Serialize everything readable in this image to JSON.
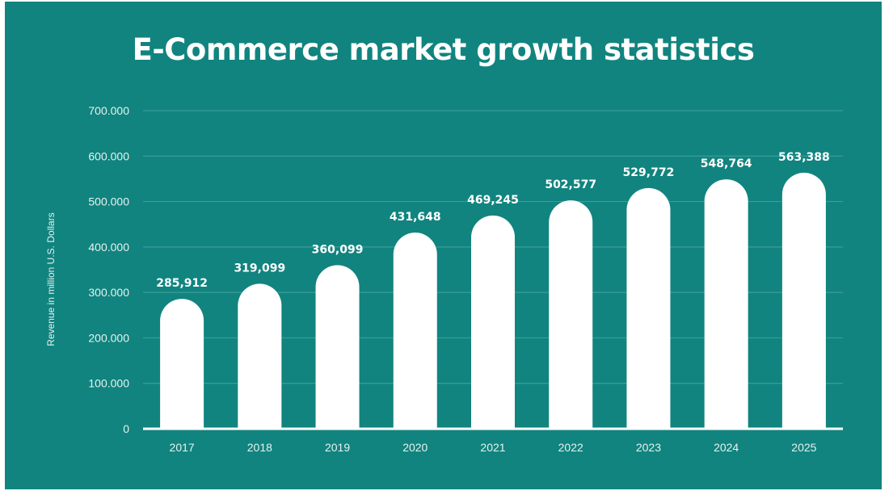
{
  "chart_data": {
    "type": "bar",
    "title": "E-Commerce market growth statistics",
    "xlabel": "",
    "ylabel": "Revenue in million U.S. Dollars",
    "categories": [
      "2017",
      "2018",
      "2019",
      "2020",
      "2021",
      "2022",
      "2023",
      "2024",
      "2025"
    ],
    "values": [
      285912,
      319099,
      360099,
      431648,
      469245,
      502577,
      529772,
      548764,
      563388
    ],
    "value_labels": [
      "285,912",
      "319,099",
      "360,099",
      "431,648",
      "469,245",
      "502,577",
      "529,772",
      "548,764",
      "563,388"
    ],
    "yticks": [
      0,
      100000,
      200000,
      300000,
      400000,
      500000,
      600000,
      700000
    ],
    "ytick_labels": [
      "0",
      "100.000",
      "200.000",
      "300.000",
      "400.000",
      "500.000",
      "600.000",
      "700.000"
    ],
    "ylim": [
      0,
      700000
    ],
    "grid": true,
    "legend": "none",
    "colors": {
      "background": "#11847f",
      "bar": "#ffffff",
      "gridline": "#3b9d98",
      "text": "#ffffff"
    }
  }
}
